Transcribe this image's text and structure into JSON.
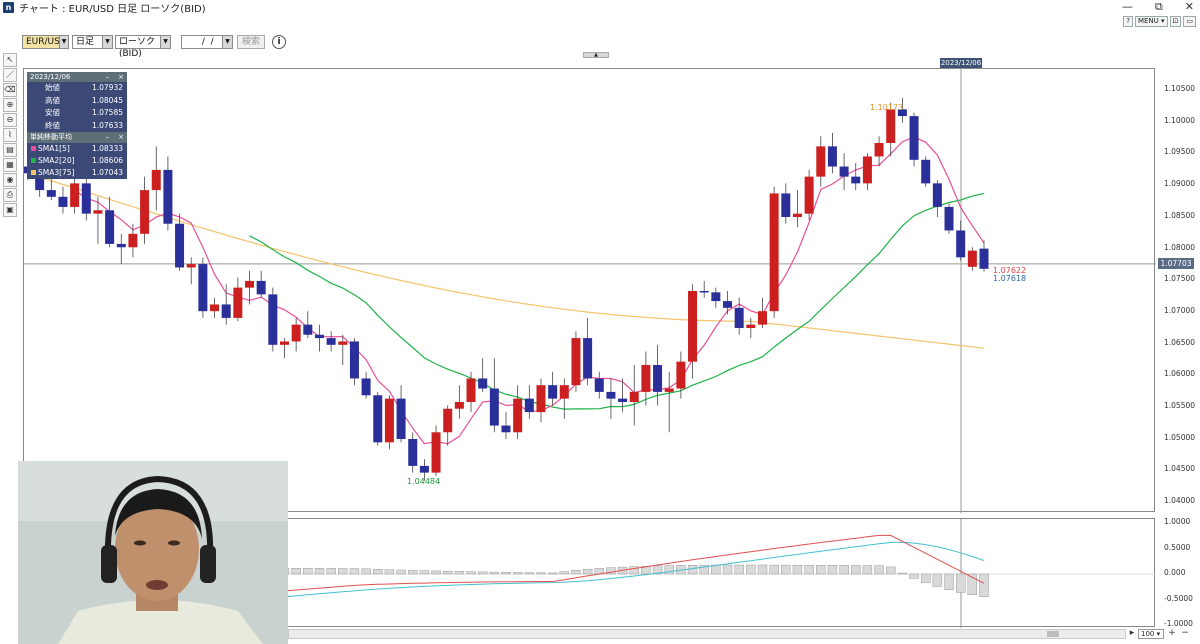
{
  "window": {
    "title": "チャート : EUR/USD 日足 ローソク(BID)",
    "min_icon": "—",
    "max_icon": "⧉",
    "close_icon": "✕"
  },
  "util_buttons": {
    "help": "?",
    "menu": "MENU ▾",
    "btn3": "⊡",
    "btn4": "▭"
  },
  "toolbar": {
    "pair": "EUR/USD",
    "timeframe": "日足",
    "chart_type": "ローソク(BID)",
    "date_value": " /  / ",
    "search_label": "検索",
    "info_icon": "i"
  },
  "info_box": {
    "date": "2023/12/06",
    "ohlc": [
      {
        "label": "始値",
        "value": "1.07932"
      },
      {
        "label": "高値",
        "value": "1.08045"
      },
      {
        "label": "安値",
        "value": "1.07585"
      },
      {
        "label": "終値",
        "value": "1.07633"
      }
    ],
    "sma_title": "単純移動平均",
    "sma": [
      {
        "label": "SMA1[5]",
        "value": "1.08333",
        "color": "#e84f9a"
      },
      {
        "label": "SMA2[20]",
        "value": "1.08606",
        "color": "#1fb34a"
      },
      {
        "label": "SMA3[75]",
        "value": "1.07043",
        "color": "#f4c36a"
      }
    ]
  },
  "highlight_date": "2023/12/06",
  "price_axis": [
    "1.10500",
    "1.10000",
    "1.09500",
    "1.09000",
    "1.08500",
    "1.08000",
    "1.07500",
    "1.07000",
    "1.06500",
    "1.06000",
    "1.05500",
    "1.05000",
    "1.04500",
    "1.04000"
  ],
  "current_price": "1.07703",
  "price_labels": {
    "high": "1.10173",
    "low": "1.04484",
    "sma1": "1.07622",
    "sma3": "1.07618"
  },
  "sub_axis": [
    "1.0000",
    "0.5000",
    "0.000",
    "-0.5000",
    "-1.0000"
  ],
  "zoom": "100",
  "colors": {
    "up": "#cc2020",
    "down": "#2a2f9a",
    "sma5": "#e84f9a",
    "sma20": "#1fb34a",
    "sma75": "#f4c36a",
    "macd": "#e05050",
    "signal": "#44c0d0"
  },
  "chart_data": {
    "type": "candlestick",
    "series": [
      {
        "name": "SMA1[5]"
      },
      {
        "name": "SMA2[20]"
      },
      {
        "name": "SMA3[75]"
      }
    ],
    "ylim": [
      1.04,
      1.106
    ]
  }
}
